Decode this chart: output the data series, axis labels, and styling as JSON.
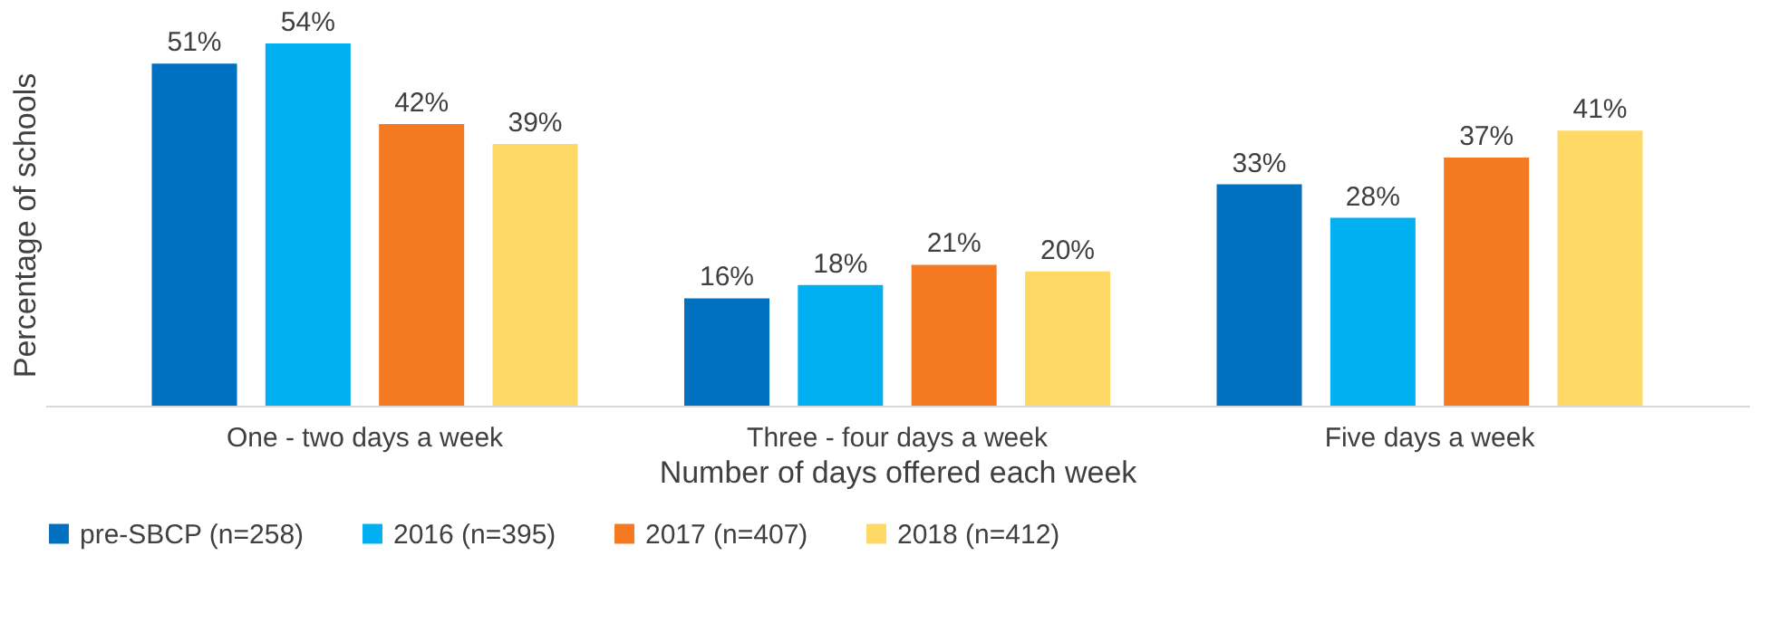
{
  "chart_data": {
    "type": "bar",
    "xlabel": "Number of days offered each week",
    "ylabel": "Percentage of schools",
    "categories": [
      "One - two days a week",
      "Three - four days a week",
      "Five days a week"
    ],
    "series": [
      {
        "name": "pre-SBCP (n=258)",
        "color": "#0070c0",
        "values": [
          51,
          16,
          33
        ],
        "value_labels": [
          "51%",
          "16%",
          "33%"
        ]
      },
      {
        "name": "2016 (n=395)",
        "color": "#00b0f0",
        "values": [
          54,
          18,
          28
        ],
        "value_labels": [
          "54%",
          "18%",
          "28%"
        ]
      },
      {
        "name": "2017 (n=407)",
        "color": "#f47920",
        "values": [
          42,
          21,
          37
        ],
        "value_labels": [
          "42%",
          "21%",
          "37%"
        ]
      },
      {
        "name": "2018 (n=412)",
        "color": "#ffd966",
        "values": [
          39,
          20,
          41
        ],
        "value_labels": [
          "39%",
          "20%",
          "41%"
        ]
      }
    ],
    "legend": "bottom",
    "grid": false
  }
}
